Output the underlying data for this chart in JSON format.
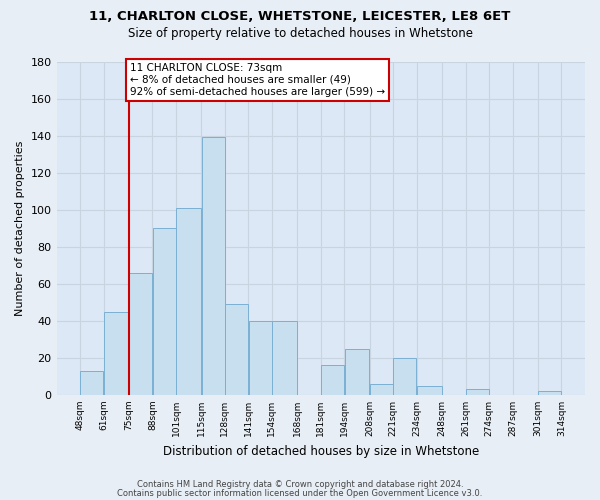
{
  "title_line1": "11, CHARLTON CLOSE, WHETSTONE, LEICESTER, LE8 6ET",
  "title_line2": "Size of property relative to detached houses in Whetstone",
  "xlabel": "Distribution of detached houses by size in Whetstone",
  "ylabel": "Number of detached properties",
  "bar_left_edges": [
    48,
    61,
    75,
    88,
    101,
    115,
    128,
    141,
    154,
    168,
    181,
    194,
    208,
    221,
    234,
    248,
    261,
    274,
    287,
    301
  ],
  "bar_widths": [
    13,
    14,
    13,
    13,
    14,
    13,
    13,
    13,
    14,
    13,
    13,
    14,
    13,
    13,
    14,
    13,
    13,
    13,
    14,
    13
  ],
  "bar_heights": [
    13,
    45,
    66,
    90,
    101,
    139,
    49,
    40,
    40,
    0,
    16,
    25,
    6,
    20,
    5,
    0,
    3,
    0,
    0,
    2
  ],
  "tick_labels": [
    "48sqm",
    "61sqm",
    "75sqm",
    "88sqm",
    "101sqm",
    "115sqm",
    "128sqm",
    "141sqm",
    "154sqm",
    "168sqm",
    "181sqm",
    "194sqm",
    "208sqm",
    "221sqm",
    "234sqm",
    "248sqm",
    "261sqm",
    "274sqm",
    "287sqm",
    "301sqm",
    "314sqm"
  ],
  "tick_positions": [
    48,
    61,
    75,
    88,
    101,
    115,
    128,
    141,
    154,
    168,
    181,
    194,
    208,
    221,
    234,
    248,
    261,
    274,
    287,
    301,
    314
  ],
  "bar_color": "#c8dff0",
  "bar_edge_color": "#7ab0d4",
  "vline_x": 75,
  "vline_color": "#cc0000",
  "annotation_text_line1": "11 CHARLTON CLOSE: 73sqm",
  "annotation_text_line2": "← 8% of detached houses are smaller (49)",
  "annotation_text_line3": "92% of semi-detached houses are larger (599) →",
  "ylim": [
    0,
    180
  ],
  "xlim": [
    35,
    327
  ],
  "yticks": [
    0,
    20,
    40,
    60,
    80,
    100,
    120,
    140,
    160,
    180
  ],
  "footer_line1": "Contains HM Land Registry data © Crown copyright and database right 2024.",
  "footer_line2": "Contains public sector information licensed under the Open Government Licence v3.0.",
  "background_color": "#e8eef5",
  "grid_color": "#c8d4e0",
  "plot_bg_color": "#dce8f5"
}
